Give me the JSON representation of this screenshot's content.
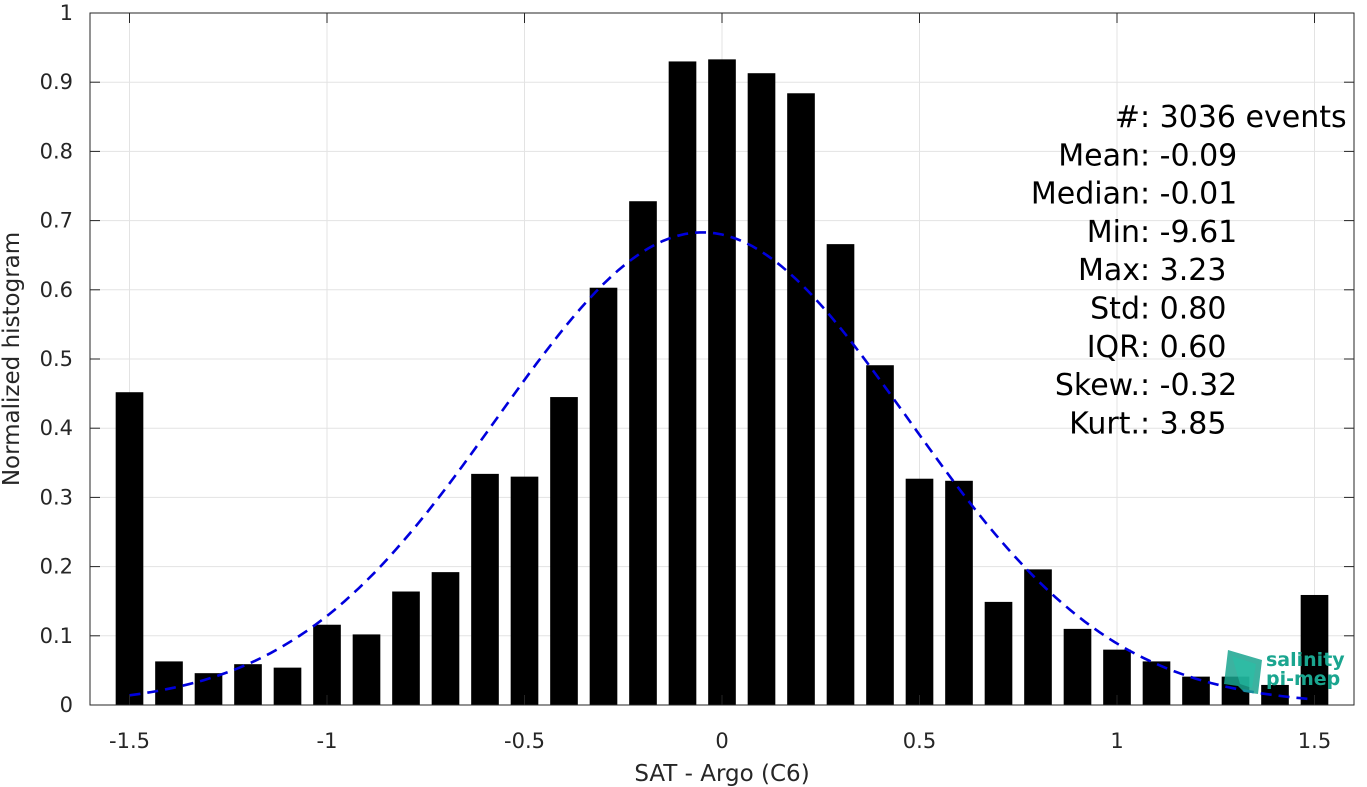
{
  "chart_data": {
    "type": "bar",
    "xlabel": "SAT - Argo (C6)",
    "ylabel": "Normalized histogram",
    "xlim": [
      -1.6,
      1.6
    ],
    "ylim": [
      0,
      1
    ],
    "grid": true,
    "xticks": [
      -1.5,
      -1,
      -0.5,
      0,
      0.5,
      1,
      1.5
    ],
    "xtick_labels": [
      "-1.5",
      "-1",
      "-0.5",
      "0",
      "0.5",
      "1",
      "1.5"
    ],
    "yticks": [
      0,
      0.1,
      0.2,
      0.3,
      0.4,
      0.5,
      0.6,
      0.7,
      0.8,
      0.9,
      1
    ],
    "ytick_labels": [
      "0",
      "0.1",
      "0.2",
      "0.3",
      "0.4",
      "0.5",
      "0.6",
      "0.7",
      "0.8",
      "0.9",
      "1"
    ],
    "bar_width": 0.07,
    "bar_color": "#000000",
    "x": [
      -1.5,
      -1.4,
      -1.3,
      -1.2,
      -1.1,
      -1.0,
      -0.9,
      -0.8,
      -0.7,
      -0.6,
      -0.5,
      -0.4,
      -0.3,
      -0.2,
      -0.1,
      0.0,
      0.1,
      0.2,
      0.3,
      0.4,
      0.5,
      0.6,
      0.7,
      0.8,
      0.9,
      1.0,
      1.1,
      1.2,
      1.3,
      1.4,
      1.5
    ],
    "values": [
      0.452,
      0.063,
      0.046,
      0.059,
      0.054,
      0.116,
      0.102,
      0.164,
      0.192,
      0.334,
      0.33,
      0.445,
      0.603,
      0.728,
      0.93,
      0.933,
      0.913,
      0.884,
      0.666,
      0.491,
      0.327,
      0.324,
      0.149,
      0.196,
      0.11,
      0.08,
      0.063,
      0.041,
      0.041,
      0.029,
      0.159
    ],
    "fit_curve": {
      "type": "gaussian",
      "mean": -0.05,
      "std": 0.52,
      "peak": 0.683,
      "x_range": [
        -1.5,
        1.5
      ],
      "color": "#0000dd",
      "style": "dashed"
    },
    "annotation": [
      {
        "label": "#  ",
        "value": ": 3036 events"
      },
      {
        "label": "Mean ",
        "value": ": -0.09"
      },
      {
        "label": "Median ",
        "value": ": -0.01"
      },
      {
        "label": "Min ",
        "value": ": -9.61"
      },
      {
        "label": "Max ",
        "value": ": 3.23"
      },
      {
        "label": "Std ",
        "value": ": 0.80"
      },
      {
        "label": "IQR ",
        "value": ": 0.60"
      },
      {
        "label": "Skew. ",
        "value": ": -0.32"
      },
      {
        "label": "Kurt. ",
        "value": ": 3.85"
      }
    ]
  },
  "logo": {
    "line1": "salinity",
    "line2": "pi-mep",
    "color": "#1aa58f"
  }
}
